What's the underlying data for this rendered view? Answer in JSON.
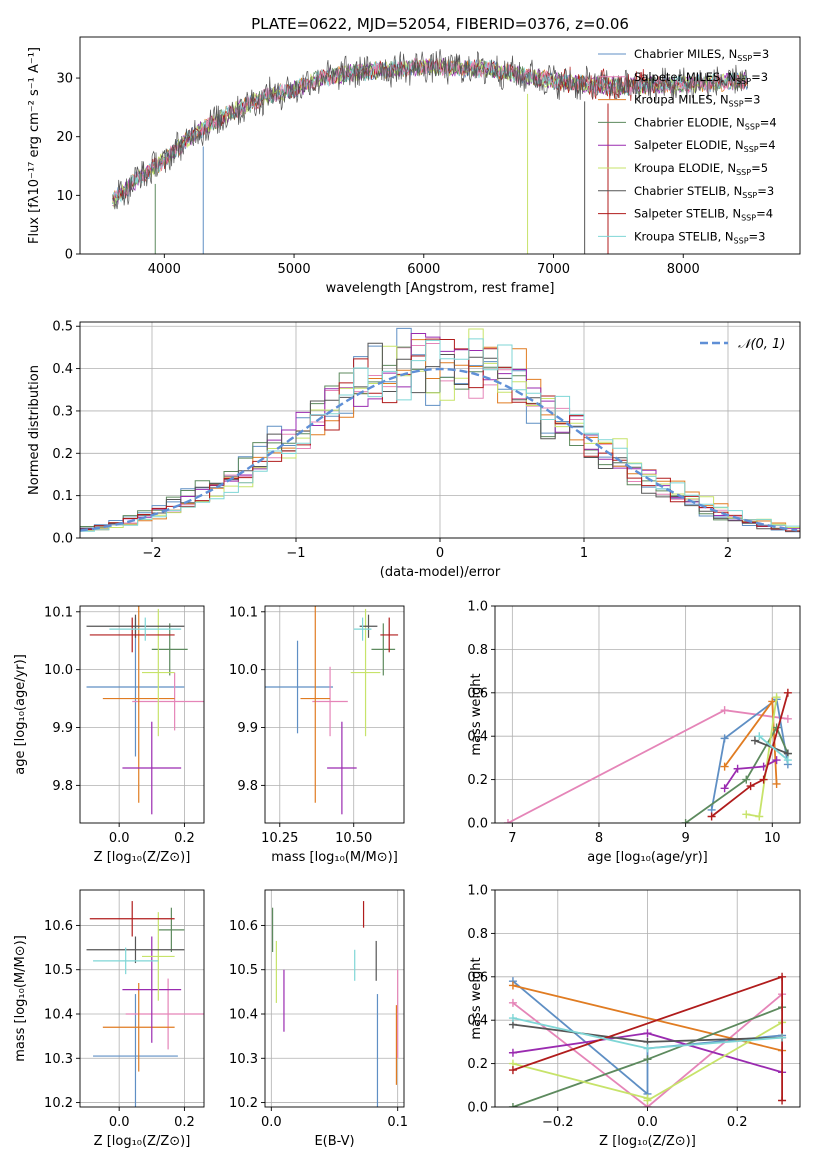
{
  "figure": {
    "title": "PLATE=0622, MJD=52054, FIBERID=0376, z=0.06"
  },
  "colors": {
    "c_miles": "#5f8fc4",
    "s_miles": "#e585b8",
    "k_miles": "#e07c22",
    "c_elodie": "#5d8a5e",
    "s_elodie": "#9a2bb0",
    "k_elodie": "#c7e36a",
    "c_stelib": "#555555",
    "s_stelib": "#b01c1c",
    "k_stelib": "#7fd6d6",
    "gauss": "#5f8fd6",
    "grid": "#b0b0b0"
  },
  "chart_data": [
    {
      "id": "spectrum",
      "type": "line",
      "xlabel": "wavelength [Angstrom, rest frame]",
      "ylabel": "Flux [fλ10⁻¹⁷ erg cm⁻² s⁻¹ A⁻¹]",
      "xlim": [
        3350,
        8900
      ],
      "ylim": [
        0,
        37
      ],
      "xticks": [
        "4000",
        "5000",
        "6000",
        "7000",
        "8000"
      ],
      "yticks": [
        "0",
        "10",
        "20",
        "30"
      ],
      "legend_position": "top-right",
      "continuum": {
        "x": [
          3600,
          3800,
          4000,
          4200,
          4500,
          4800,
          5000,
          5200,
          5500,
          6000,
          6500,
          7000,
          7500,
          8000,
          8500
        ],
        "y": [
          9,
          13,
          16,
          20,
          24,
          27,
          28,
          30,
          31,
          32,
          31.5,
          29.5,
          28.5,
          29,
          29.5
        ]
      },
      "series": [
        {
          "name": "Chabrier MILES, N",
          "sub": "SSP",
          "suffix": "=3",
          "color_key": "c_miles"
        },
        {
          "name": "Salpeter MILES, N",
          "sub": "SSP",
          "suffix": "=3",
          "color_key": "s_miles"
        },
        {
          "name": "Kroupa MILES, N",
          "sub": "SSP",
          "suffix": "=3",
          "color_key": "k_miles"
        },
        {
          "name": "Chabrier ELODIE, N",
          "sub": "SSP",
          "suffix": "=4",
          "color_key": "c_elodie"
        },
        {
          "name": "Salpeter ELODIE, N",
          "sub": "SSP",
          "suffix": "=4",
          "color_key": "s_elodie"
        },
        {
          "name": "Kroupa ELODIE, N",
          "sub": "SSP",
          "suffix": "=5",
          "color_key": "k_elodie"
        },
        {
          "name": "Chabrier STELIB, N",
          "sub": "SSP",
          "suffix": "=3",
          "color_key": "c_stelib"
        },
        {
          "name": "Salpeter STELIB, N",
          "sub": "SSP",
          "suffix": "=4",
          "color_key": "s_stelib"
        },
        {
          "name": "Kroupa STELIB, N",
          "sub": "SSP",
          "suffix": "=3",
          "color_key": "k_stelib"
        }
      ]
    },
    {
      "id": "residuals",
      "type": "histogram",
      "xlabel": "(data-model)/error",
      "ylabel": "Normed distribution",
      "xlim": [
        -2.5,
        2.5
      ],
      "ylim": [
        0,
        0.51
      ],
      "xticks": [
        "−2",
        "−1",
        "0",
        "1",
        "2"
      ],
      "yticks": [
        "0.0",
        "0.1",
        "0.2",
        "0.3",
        "0.4",
        "0.5"
      ],
      "legend": "𝒩(0, 1)",
      "legend_position": "top-right",
      "bin_width": 0.1,
      "reference": {
        "name": "𝒩(0, 1)",
        "mean": 0,
        "sigma": 1,
        "color_key": "gauss"
      }
    },
    {
      "id": "age_vs_Z",
      "type": "errorbar",
      "xlabel": "Z [log₁₀(Z/Z⊙)]",
      "ylabel": "age  [log₁₀(age/yr)]",
      "xlim": [
        -0.12,
        0.26
      ],
      "ylim": [
        9.735,
        10.11
      ],
      "xticks": [
        "0.0",
        "0.2"
      ],
      "yticks": [
        "9.8",
        "9.9",
        "10.0",
        "10.1"
      ],
      "points": [
        {
          "color_key": "c_miles",
          "x": 0.05,
          "xerr": 0.15,
          "y": 9.97,
          "yerr": 0.12
        },
        {
          "color_key": "s_miles",
          "x": 0.17,
          "xerr": 0.13,
          "y": 9.945,
          "yerr": 0.05
        },
        {
          "color_key": "k_miles",
          "x": 0.06,
          "xerr": 0.11,
          "y": 9.95,
          "yerr": 0.18
        },
        {
          "color_key": "c_elodie",
          "x": 0.155,
          "xerr": 0.055,
          "y": 10.035,
          "yerr": 0.045
        },
        {
          "color_key": "s_elodie",
          "x": 0.1,
          "xerr": 0.09,
          "y": 9.83,
          "yerr": 0.08
        },
        {
          "color_key": "k_elodie",
          "x": 0.12,
          "xerr": 0.05,
          "y": 9.995,
          "yerr": 0.11
        },
        {
          "color_key": "c_stelib",
          "x": 0.05,
          "xerr": 0.15,
          "y": 10.075,
          "yerr": 0.02
        },
        {
          "color_key": "s_stelib",
          "x": 0.04,
          "xerr": 0.13,
          "y": 10.06,
          "yerr": 0.03
        },
        {
          "color_key": "k_stelib",
          "x": 0.08,
          "xerr": 0.11,
          "y": 10.07,
          "yerr": 0.02
        }
      ]
    },
    {
      "id": "age_vs_mass",
      "type": "errorbar",
      "xlabel": "mass [log₁₀(M/M⊙)]",
      "ylabel": "",
      "xlim": [
        10.2,
        10.67
      ],
      "ylim": [
        9.735,
        10.11
      ],
      "xticks": [
        "10.25",
        "10.50"
      ],
      "yticks": [
        "9.8",
        "9.9",
        "10.0",
        "10.1"
      ],
      "points": [
        {
          "color_key": "c_miles",
          "x": 10.31,
          "xerr": 0.12,
          "y": 9.97,
          "yerr": 0.08
        },
        {
          "color_key": "s_miles",
          "x": 10.42,
          "xerr": 0.06,
          "y": 9.945,
          "yerr": 0.06
        },
        {
          "color_key": "k_miles",
          "x": 10.37,
          "xerr": 0.05,
          "y": 9.95,
          "yerr": 0.18
        },
        {
          "color_key": "c_elodie",
          "x": 10.6,
          "xerr": 0.04,
          "y": 10.035,
          "yerr": 0.045
        },
        {
          "color_key": "s_elodie",
          "x": 10.46,
          "xerr": 0.05,
          "y": 9.83,
          "yerr": 0.08
        },
        {
          "color_key": "k_elodie",
          "x": 10.54,
          "xerr": 0.05,
          "y": 9.995,
          "yerr": 0.11
        },
        {
          "color_key": "c_stelib",
          "x": 10.55,
          "xerr": 0.03,
          "y": 10.075,
          "yerr": 0.02
        },
        {
          "color_key": "s_stelib",
          "x": 10.62,
          "xerr": 0.03,
          "y": 10.06,
          "yerr": 0.03
        },
        {
          "color_key": "k_stelib",
          "x": 10.53,
          "xerr": 0.03,
          "y": 10.07,
          "yerr": 0.02
        }
      ]
    },
    {
      "id": "weight_vs_age",
      "type": "line",
      "xlabel": "age  [log₁₀(age/yr)]",
      "ylabel": "mass weight",
      "xlim": [
        6.8,
        10.32
      ],
      "ylim": [
        0,
        1.0
      ],
      "xticks": [
        "7",
        "8",
        "9",
        "10"
      ],
      "yticks": [
        "0.0",
        "0.2",
        "0.4",
        "0.6",
        "0.8",
        "1.0"
      ],
      "series": [
        {
          "color_key": "s_miles",
          "x": [
            6.95,
            9.45,
            10.18
          ],
          "y": [
            0.0,
            0.52,
            0.48
          ]
        },
        {
          "color_key": "c_miles",
          "x": [
            9.3,
            9.45,
            10.05,
            10.18
          ],
          "y": [
            0.06,
            0.39,
            0.57,
            0.27
          ]
        },
        {
          "color_key": "k_miles",
          "x": [
            9.45,
            10.0,
            10.05
          ],
          "y": [
            0.26,
            0.56,
            0.18
          ]
        },
        {
          "color_key": "c_elodie",
          "x": [
            9.0,
            9.7,
            10.05,
            10.18
          ],
          "y": [
            0.0,
            0.2,
            0.44,
            0.32
          ]
        },
        {
          "color_key": "s_elodie",
          "x": [
            9.45,
            9.6,
            9.9,
            10.05
          ],
          "y": [
            0.16,
            0.25,
            0.26,
            0.29
          ]
        },
        {
          "color_key": "k_elodie",
          "x": [
            9.7,
            9.85,
            10.05
          ],
          "y": [
            0.04,
            0.03,
            0.58
          ]
        },
        {
          "color_key": "c_stelib",
          "x": [
            9.8,
            10.18
          ],
          "y": [
            0.38,
            0.32
          ]
        },
        {
          "color_key": "s_stelib",
          "x": [
            9.3,
            9.75,
            9.9,
            10.18
          ],
          "y": [
            0.03,
            0.17,
            0.2,
            0.6
          ]
        },
        {
          "color_key": "k_stelib",
          "x": [
            9.85,
            10.18
          ],
          "y": [
            0.4,
            0.29
          ]
        }
      ]
    },
    {
      "id": "mass_vs_Z",
      "type": "errorbar",
      "xlabel": "Z [log₁₀(Z/Z⊙)]",
      "ylabel": "mass [log₁₀(M/M⊙)]",
      "xlim": [
        -0.12,
        0.26
      ],
      "ylim": [
        10.19,
        10.68
      ],
      "xticks": [
        "0.0",
        "0.2"
      ],
      "yticks": [
        "10.2",
        "10.3",
        "10.4",
        "10.5",
        "10.6"
      ],
      "points": [
        {
          "color_key": "c_miles",
          "x": 0.05,
          "xerr": 0.13,
          "y": 10.305,
          "yerr": 0.14
        },
        {
          "color_key": "s_miles",
          "x": 0.15,
          "xerr": 0.13,
          "y": 10.4,
          "yerr": 0.08
        },
        {
          "color_key": "k_miles",
          "x": 0.06,
          "xerr": 0.11,
          "y": 10.37,
          "yerr": 0.1
        },
        {
          "color_key": "c_elodie",
          "x": 0.16,
          "xerr": 0.04,
          "y": 10.59,
          "yerr": 0.05
        },
        {
          "color_key": "s_elodie",
          "x": 0.1,
          "xerr": 0.09,
          "y": 10.455,
          "yerr": 0.12
        },
        {
          "color_key": "k_elodie",
          "x": 0.12,
          "xerr": 0.05,
          "y": 10.53,
          "yerr": 0.1
        },
        {
          "color_key": "c_stelib",
          "x": 0.05,
          "xerr": 0.15,
          "y": 10.545,
          "yerr": 0.03
        },
        {
          "color_key": "s_stelib",
          "x": 0.04,
          "xerr": 0.13,
          "y": 10.615,
          "yerr": 0.04
        },
        {
          "color_key": "k_stelib",
          "x": 0.02,
          "xerr": 0.1,
          "y": 10.52,
          "yerr": 0.03
        }
      ]
    },
    {
      "id": "mass_vs_ebv",
      "type": "errorbar",
      "xlabel": "E(B-V)",
      "ylabel": "",
      "xlim": [
        -0.005,
        0.105
      ],
      "ylim": [
        10.19,
        10.68
      ],
      "xticks": [
        "0.0",
        "0.1"
      ],
      "yticks": [
        "10.2",
        "10.3",
        "10.4",
        "10.5",
        "10.6"
      ],
      "points": [
        {
          "color_key": "c_miles",
          "x": 0.084,
          "y": 10.305,
          "yerr": 0.14
        },
        {
          "color_key": "s_miles",
          "x": 0.1,
          "y": 10.4,
          "yerr": 0.1
        },
        {
          "color_key": "k_miles",
          "x": 0.099,
          "y": 10.33,
          "yerr": 0.09
        },
        {
          "color_key": "c_elodie",
          "x": 0.001,
          "y": 10.59,
          "yerr": 0.05
        },
        {
          "color_key": "s_elodie",
          "x": 0.01,
          "y": 10.43,
          "yerr": 0.07
        },
        {
          "color_key": "k_elodie",
          "x": 0.004,
          "y": 10.495,
          "yerr": 0.07
        },
        {
          "color_key": "c_stelib",
          "x": 0.083,
          "y": 10.52,
          "yerr": 0.045
        },
        {
          "color_key": "s_stelib",
          "x": 0.073,
          "y": 10.625,
          "yerr": 0.03
        },
        {
          "color_key": "k_stelib",
          "x": 0.066,
          "y": 10.51,
          "yerr": 0.035
        }
      ]
    },
    {
      "id": "weight_vs_Z",
      "type": "line",
      "xlabel": "Z [log₁₀(Z/Z⊙)]",
      "ylabel": "mass weight",
      "xlim": [
        -0.34,
        0.34
      ],
      "ylim": [
        0,
        1.0
      ],
      "xticks": [
        "−0.2",
        "0.0",
        "0.2"
      ],
      "yticks": [
        "0.0",
        "0.2",
        "0.4",
        "0.6",
        "0.8",
        "1.0"
      ],
      "series": [
        {
          "color_key": "c_miles",
          "x": [
            -0.3,
            0.0,
            0.0,
            0.3
          ],
          "y": [
            0.58,
            0.06,
            0.27,
            0.33
          ]
        },
        {
          "color_key": "s_miles",
          "x": [
            -0.3,
            0.0,
            0.3
          ],
          "y": [
            0.48,
            0.0,
            0.52
          ]
        },
        {
          "color_key": "k_miles",
          "x": [
            -0.3,
            0.3
          ],
          "y": [
            0.56,
            0.26
          ]
        },
        {
          "color_key": "c_elodie",
          "x": [
            -0.3,
            0.0,
            0.3
          ],
          "y": [
            0.0,
            0.22,
            0.46
          ]
        },
        {
          "color_key": "s_elodie",
          "x": [
            -0.3,
            0.0,
            0.3
          ],
          "y": [
            0.25,
            0.34,
            0.16
          ]
        },
        {
          "color_key": "k_elodie",
          "x": [
            -0.3,
            0.0,
            0.0,
            0.3
          ],
          "y": [
            0.2,
            0.04,
            0.03,
            0.39
          ]
        },
        {
          "color_key": "c_stelib",
          "x": [
            -0.3,
            0.0,
            0.3
          ],
          "y": [
            0.38,
            0.3,
            0.32
          ]
        },
        {
          "color_key": "s_stelib",
          "x": [
            -0.3,
            0.3,
            0.3
          ],
          "y": [
            0.17,
            0.6,
            0.03
          ]
        },
        {
          "color_key": "k_stelib",
          "x": [
            -0.3,
            0.0,
            0.3
          ],
          "y": [
            0.41,
            0.27,
            0.32
          ]
        }
      ]
    }
  ]
}
